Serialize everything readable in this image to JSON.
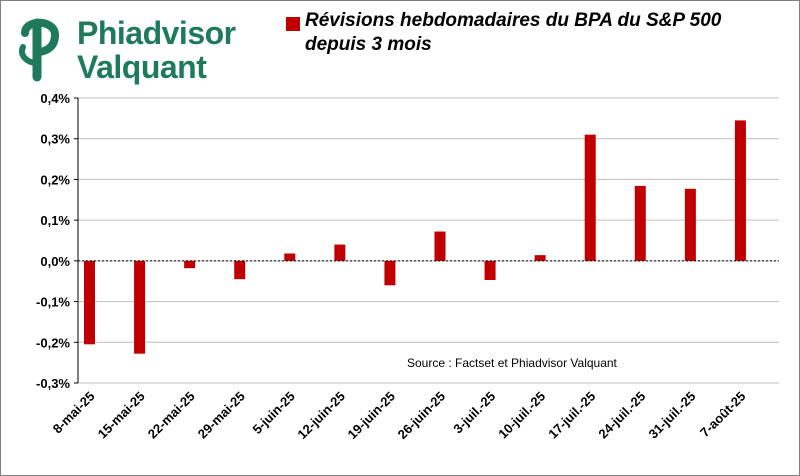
{
  "logo": {
    "line1": "Phiadvisor",
    "line2": "Valquant",
    "brand_color": "#1f7a5c"
  },
  "colors": {
    "bar": "#c00000",
    "grid": "#bfbfbf",
    "axis": "#000000"
  },
  "chart_data": {
    "type": "bar",
    "title": "",
    "xlabel": "",
    "ylabel": "",
    "legend": "top",
    "grid": true,
    "ylim": [
      -0.3,
      0.4
    ],
    "yticks": [
      -0.3,
      -0.2,
      -0.1,
      0.0,
      0.1,
      0.2,
      0.3,
      0.4
    ],
    "ytick_labels": [
      "-0,3%",
      "-0,2%",
      "-0,1%",
      "0,0%",
      "0,1%",
      "0,2%",
      "0,3%",
      "0,4%"
    ],
    "categories": [
      "8-mai-25",
      "15-mai-25",
      "22-mai-25",
      "29-mai-25",
      "5-juin-25",
      "12-juin-25",
      "19-juin-25",
      "26-juin-25",
      "3-juil.-25",
      "10-juil.-25",
      "17-juil.-25",
      "24-juil.-25",
      "31-juil.-25",
      "7-août-25"
    ],
    "series": [
      {
        "name": "Révisions hebdomadaires du BPA du S&P 500 depuis 3 mois",
        "values": [
          -0.205,
          -0.228,
          -0.018,
          -0.045,
          0.018,
          0.04,
          -0.06,
          0.072,
          -0.047,
          0.014,
          0.31,
          0.184,
          0.177,
          0.345
        ]
      }
    ],
    "annotation": "Source : Factset et Phiadvisor Valquant"
  }
}
